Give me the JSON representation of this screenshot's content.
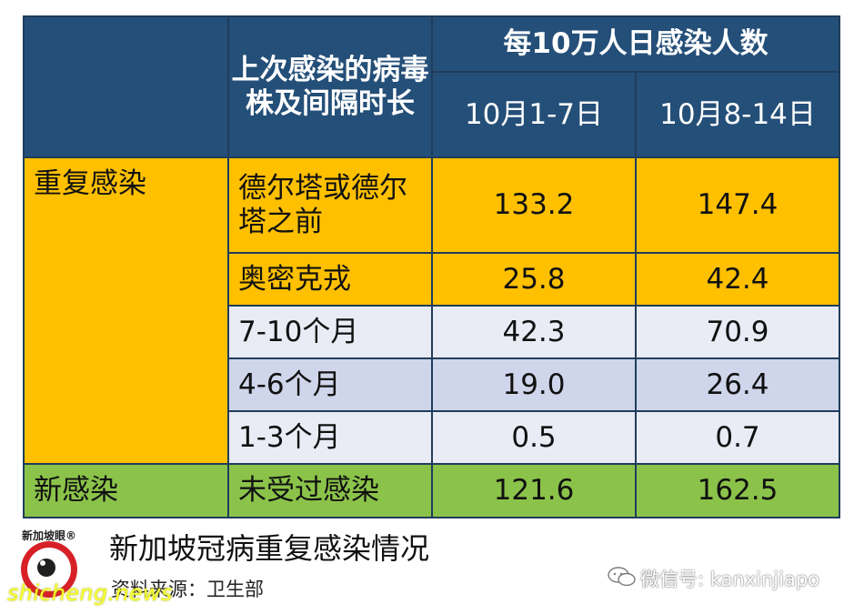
{
  "table": {
    "header": {
      "col_label": "上次感染的病毒株及间隔时长",
      "group_label": "每10万人日感染人数",
      "date_1": "10月1-7日",
      "date_2": "10月8-14日"
    },
    "categories": {
      "reinfection": "重复感染",
      "new_infection": "新感染"
    },
    "rows": [
      {
        "label": "德尔塔或德尔塔之前",
        "v1": "133.2",
        "v2": "147.4"
      },
      {
        "label": "奥密克戎",
        "v1": "25.8",
        "v2": "42.4"
      },
      {
        "label": "7-10个月",
        "v1": "42.3",
        "v2": "70.9"
      },
      {
        "label": "4-6个月",
        "v1": "19.0",
        "v2": "26.4"
      },
      {
        "label": "1-3个月",
        "v1": "0.5",
        "v2": "0.7"
      },
      {
        "label": "未受过感染",
        "v1": "121.6",
        "v2": "162.5"
      }
    ]
  },
  "caption": {
    "title": "新加坡冠病重复感染情况",
    "source": "资料来源：卫生部"
  },
  "logo": {
    "text": "新加坡眼®",
    "icon": "eye-logo-icon"
  },
  "watermarks": {
    "left": "shicheng.news",
    "right": "微信号: kanxinjiapo",
    "wechat_icon": "wechat-icon"
  },
  "colors": {
    "header_blue": "#244f78",
    "orange": "#ffc000",
    "light_lavender": "#e9ebf5",
    "mid_lavender": "#cfd5ea",
    "green": "#8bc34a",
    "logo_red": "#d72027",
    "watermark_yellow": "#f7ff2b"
  }
}
